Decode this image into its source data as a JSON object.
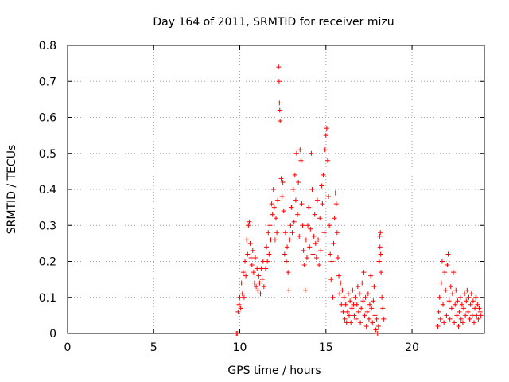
{
  "chart_data": {
    "type": "scatter",
    "title": "Day 164 of 2011, SRMTID for receiver mizu",
    "xlabel": "GPS time / hours",
    "ylabel": "SRMTID / TECUs",
    "xlim": [
      0,
      24.2
    ],
    "ylim": [
      0,
      0.8
    ],
    "x_ticks": [
      0,
      5,
      10,
      15,
      20
    ],
    "y_ticks": [
      0,
      0.1,
      0.2,
      0.3,
      0.4,
      0.5,
      0.6,
      0.7,
      0.8
    ],
    "y_tick_labels": [
      "0",
      "0.1",
      "0.2",
      "0.3",
      "0.4",
      "0.5",
      "0.6",
      "0.7",
      "0.8"
    ],
    "grid": true,
    "marker": "+",
    "color": "#ff0000",
    "series": [
      {
        "name": "SRMTID",
        "points": [
          [
            9.8,
            0.0
          ],
          [
            9.85,
            0.0
          ],
          [
            9.9,
            0.06
          ],
          [
            9.95,
            0.08
          ],
          [
            10.0,
            0.1
          ],
          [
            10.05,
            0.07
          ],
          [
            10.1,
            0.14
          ],
          [
            10.15,
            0.11
          ],
          [
            10.2,
            0.17
          ],
          [
            10.25,
            0.1
          ],
          [
            10.3,
            0.2
          ],
          [
            10.35,
            0.16
          ],
          [
            10.4,
            0.26
          ],
          [
            10.45,
            0.22
          ],
          [
            10.5,
            0.3
          ],
          [
            10.55,
            0.31
          ],
          [
            10.6,
            0.25
          ],
          [
            10.65,
            0.21
          ],
          [
            10.7,
            0.19
          ],
          [
            10.75,
            0.23
          ],
          [
            10.8,
            0.17
          ],
          [
            10.85,
            0.14
          ],
          [
            10.9,
            0.21
          ],
          [
            10.95,
            0.13
          ],
          [
            11.0,
            0.18
          ],
          [
            11.05,
            0.12
          ],
          [
            11.1,
            0.16
          ],
          [
            11.15,
            0.14
          ],
          [
            11.2,
            0.11
          ],
          [
            11.25,
            0.18
          ],
          [
            11.3,
            0.15
          ],
          [
            11.35,
            0.2
          ],
          [
            11.4,
            0.13
          ],
          [
            11.5,
            0.18
          ],
          [
            11.55,
            0.24
          ],
          [
            11.6,
            0.2
          ],
          [
            11.65,
            0.28
          ],
          [
            11.7,
            0.22
          ],
          [
            11.75,
            0.3
          ],
          [
            11.8,
            0.26
          ],
          [
            11.85,
            0.36
          ],
          [
            11.9,
            0.33
          ],
          [
            11.95,
            0.4
          ],
          [
            12.0,
            0.35
          ],
          [
            12.05,
            0.26
          ],
          [
            12.1,
            0.32
          ],
          [
            12.15,
            0.28
          ],
          [
            12.2,
            0.37
          ],
          [
            12.25,
            0.74
          ],
          [
            12.28,
            0.7
          ],
          [
            12.3,
            0.64
          ],
          [
            12.32,
            0.62
          ],
          [
            12.34,
            0.59
          ],
          [
            12.4,
            0.43
          ],
          [
            12.45,
            0.38
          ],
          [
            12.5,
            0.42
          ],
          [
            12.55,
            0.34
          ],
          [
            12.6,
            0.22
          ],
          [
            12.65,
            0.28
          ],
          [
            12.7,
            0.2
          ],
          [
            12.75,
            0.24
          ],
          [
            12.8,
            0.17
          ],
          [
            12.85,
            0.12
          ],
          [
            12.9,
            0.26
          ],
          [
            12.95,
            0.3
          ],
          [
            13.0,
            0.35
          ],
          [
            13.05,
            0.28
          ],
          [
            13.1,
            0.4
          ],
          [
            13.15,
            0.31
          ],
          [
            13.2,
            0.44
          ],
          [
            13.25,
            0.37
          ],
          [
            13.3,
            0.5
          ],
          [
            13.35,
            0.33
          ],
          [
            13.4,
            0.42
          ],
          [
            13.45,
            0.27
          ],
          [
            13.5,
            0.51
          ],
          [
            13.55,
            0.48
          ],
          [
            13.6,
            0.36
          ],
          [
            13.65,
            0.3
          ],
          [
            13.7,
            0.23
          ],
          [
            13.75,
            0.19
          ],
          [
            13.8,
            0.12
          ],
          [
            13.85,
            0.26
          ],
          [
            13.9,
            0.21
          ],
          [
            13.95,
            0.3
          ],
          [
            14.0,
            0.35
          ],
          [
            14.05,
            0.24
          ],
          [
            14.1,
            0.29
          ],
          [
            14.15,
            0.5
          ],
          [
            14.2,
            0.4
          ],
          [
            14.25,
            0.22
          ],
          [
            14.3,
            0.27
          ],
          [
            14.35,
            0.33
          ],
          [
            14.4,
            0.25
          ],
          [
            14.45,
            0.21
          ],
          [
            14.5,
            0.37
          ],
          [
            14.55,
            0.26
          ],
          [
            14.6,
            0.19
          ],
          [
            14.65,
            0.32
          ],
          [
            14.7,
            0.23
          ],
          [
            14.75,
            0.41
          ],
          [
            14.8,
            0.36
          ],
          [
            14.85,
            0.44
          ],
          [
            14.9,
            0.28
          ],
          [
            14.95,
            0.51
          ],
          [
            15.0,
            0.55
          ],
          [
            15.05,
            0.57
          ],
          [
            15.1,
            0.48
          ],
          [
            15.15,
            0.38
          ],
          [
            15.2,
            0.3
          ],
          [
            15.25,
            0.22
          ],
          [
            15.3,
            0.15
          ],
          [
            15.35,
            0.2
          ],
          [
            15.4,
            0.1
          ],
          [
            15.45,
            0.25
          ],
          [
            15.5,
            0.32
          ],
          [
            15.55,
            0.39
          ],
          [
            15.6,
            0.36
          ],
          [
            15.65,
            0.28
          ],
          [
            15.7,
            0.21
          ],
          [
            15.75,
            0.16
          ],
          [
            15.8,
            0.11
          ],
          [
            15.85,
            0.14
          ],
          [
            15.9,
            0.08
          ],
          [
            15.95,
            0.12
          ],
          [
            16.0,
            0.06
          ],
          [
            16.05,
            0.1
          ],
          [
            16.1,
            0.04
          ],
          [
            16.15,
            0.08
          ],
          [
            16.2,
            0.03
          ],
          [
            16.25,
            0.06
          ],
          [
            16.3,
            0.11
          ],
          [
            16.35,
            0.05
          ],
          [
            16.4,
            0.09
          ],
          [
            16.45,
            0.03
          ],
          [
            16.5,
            0.07
          ],
          [
            16.55,
            0.12
          ],
          [
            16.6,
            0.08
          ],
          [
            16.65,
            0.05
          ],
          [
            16.7,
            0.1
          ],
          [
            16.75,
            0.04
          ],
          [
            16.8,
            0.08
          ],
          [
            16.85,
            0.13
          ],
          [
            16.9,
            0.06
          ],
          [
            16.95,
            0.11
          ],
          [
            17.0,
            0.03
          ],
          [
            17.05,
            0.07
          ],
          [
            17.1,
            0.14
          ],
          [
            17.15,
            0.09
          ],
          [
            17.2,
            0.17
          ],
          [
            17.25,
            0.05
          ],
          [
            17.3,
            0.1
          ],
          [
            17.35,
            0.02
          ],
          [
            17.4,
            0.06
          ],
          [
            17.45,
            0.11
          ],
          [
            17.5,
            0.04
          ],
          [
            17.55,
            0.08
          ],
          [
            17.6,
            0.16
          ],
          [
            17.65,
            0.07
          ],
          [
            17.7,
            0.03
          ],
          [
            17.75,
            0.09
          ],
          [
            17.8,
            0.13
          ],
          [
            17.85,
            0.05
          ],
          [
            17.9,
            0.01
          ],
          [
            17.95,
            0.04
          ],
          [
            18.0,
            0.0
          ],
          [
            18.05,
            0.02
          ],
          [
            18.1,
            0.2
          ],
          [
            18.12,
            0.27
          ],
          [
            18.14,
            0.24
          ],
          [
            18.16,
            0.28
          ],
          [
            18.18,
            0.22
          ],
          [
            18.2,
            0.17
          ],
          [
            18.25,
            0.1
          ],
          [
            18.3,
            0.07
          ],
          [
            18.35,
            0.04
          ],
          [
            21.5,
            0.02
          ],
          [
            21.55,
            0.06
          ],
          [
            21.6,
            0.1
          ],
          [
            21.65,
            0.04
          ],
          [
            21.7,
            0.14
          ],
          [
            21.75,
            0.2
          ],
          [
            21.8,
            0.08
          ],
          [
            21.85,
            0.03
          ],
          [
            21.9,
            0.17
          ],
          [
            21.95,
            0.12
          ],
          [
            22.0,
            0.05
          ],
          [
            22.05,
            0.19
          ],
          [
            22.1,
            0.22
          ],
          [
            22.15,
            0.09
          ],
          [
            22.2,
            0.04
          ],
          [
            22.25,
            0.13
          ],
          [
            22.3,
            0.07
          ],
          [
            22.35,
            0.11
          ],
          [
            22.4,
            0.17
          ],
          [
            22.45,
            0.03
          ],
          [
            22.5,
            0.08
          ],
          [
            22.55,
            0.12
          ],
          [
            22.6,
            0.05
          ],
          [
            22.65,
            0.09
          ],
          [
            22.7,
            0.02
          ],
          [
            22.75,
            0.06
          ],
          [
            22.8,
            0.1
          ],
          [
            22.85,
            0.04
          ],
          [
            22.9,
            0.08
          ],
          [
            22.95,
            0.03
          ],
          [
            23.0,
            0.07
          ],
          [
            23.05,
            0.11
          ],
          [
            23.1,
            0.05
          ],
          [
            23.15,
            0.09
          ],
          [
            23.2,
            0.12
          ],
          [
            23.25,
            0.06
          ],
          [
            23.3,
            0.1
          ],
          [
            23.35,
            0.04
          ],
          [
            23.4,
            0.08
          ],
          [
            23.45,
            0.11
          ],
          [
            23.5,
            0.05
          ],
          [
            23.55,
            0.09
          ],
          [
            23.6,
            0.03
          ],
          [
            23.65,
            0.07
          ],
          [
            23.7,
            0.1
          ],
          [
            23.75,
            0.05
          ],
          [
            23.8,
            0.08
          ],
          [
            23.85,
            0.04
          ],
          [
            23.9,
            0.07
          ],
          [
            23.95,
            0.06
          ],
          [
            24.0,
            0.05
          ]
        ]
      }
    ]
  }
}
